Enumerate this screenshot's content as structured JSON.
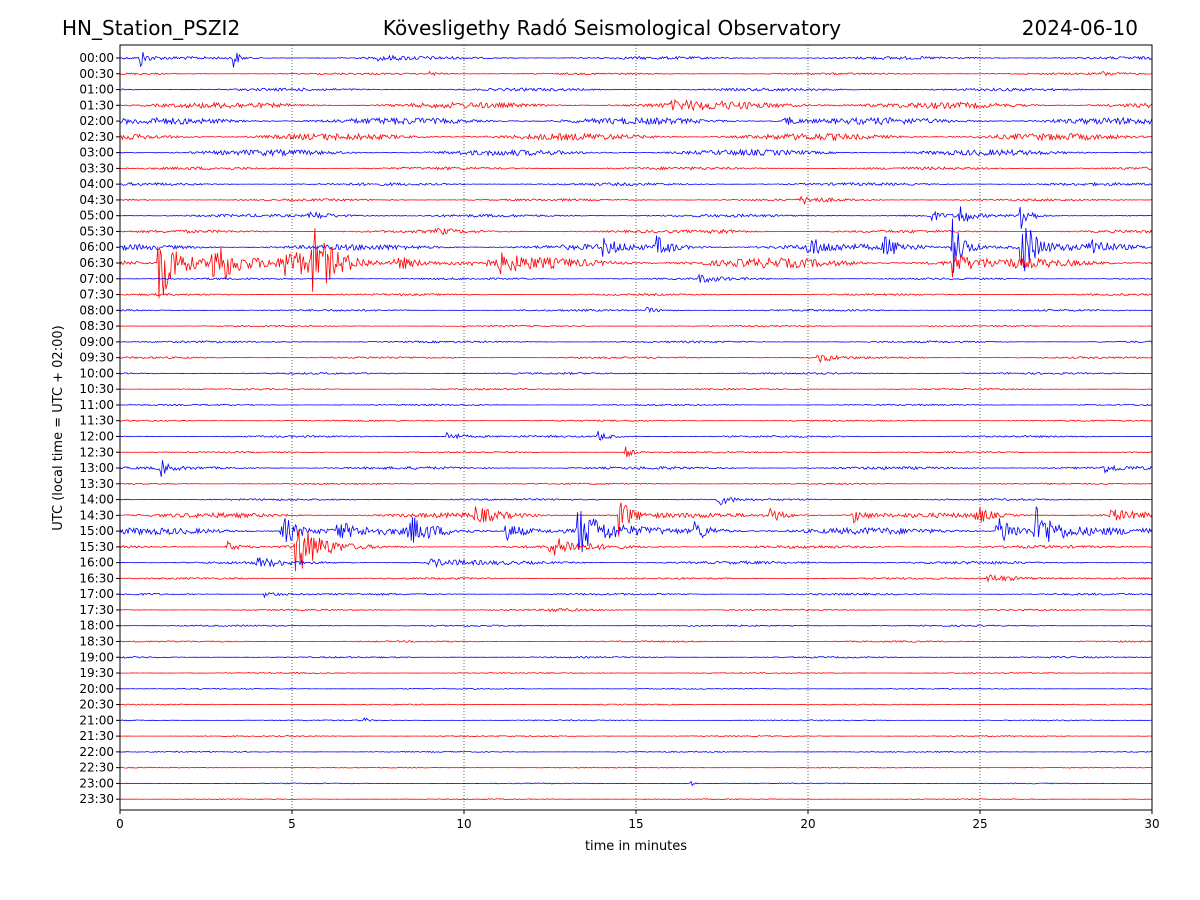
{
  "chart_data": {
    "type": "line",
    "title_left": "HN_Station_PSZI2",
    "title": "Kövesligethy Radó Seismological Observatory",
    "title_right": "2024-06-10",
    "xlabel": "time in minutes",
    "ylabel": "UTC (local time = UTC + 02:00)",
    "xlim": [
      0,
      30
    ],
    "xticks": [
      0,
      5,
      10,
      15,
      20,
      25,
      30
    ],
    "xtick_labels": [
      "0",
      "5",
      "10",
      "15",
      "20",
      "25",
      "30"
    ],
    "grid_x": true,
    "row_labels": [
      "00:00",
      "00:30",
      "01:00",
      "01:30",
      "02:00",
      "02:30",
      "03:00",
      "03:30",
      "04:00",
      "04:30",
      "05:00",
      "05:30",
      "06:00",
      "06:30",
      "07:00",
      "07:30",
      "08:00",
      "08:30",
      "09:00",
      "09:30",
      "10:00",
      "10:30",
      "11:00",
      "11:30",
      "12:00",
      "12:30",
      "13:00",
      "13:30",
      "14:00",
      "14:30",
      "15:00",
      "15:30",
      "16:00",
      "16:30",
      "17:00",
      "17:30",
      "18:00",
      "18:30",
      "19:00",
      "19:30",
      "20:00",
      "20:30",
      "21:00",
      "21:30",
      "22:00",
      "22:30",
      "23:00",
      "23:30"
    ],
    "row_colors": [
      "#0000ff",
      "#ff0000"
    ],
    "noise_level": [
      1.5,
      1,
      1.5,
      3,
      3.5,
      3.5,
      3,
      1.5,
      1.5,
      1.2,
      1.5,
      1.5,
      3,
      5,
      1,
      1,
      1,
      0.8,
      1,
      1,
      1,
      0.8,
      0.8,
      0.8,
      1,
      0.8,
      1.5,
      0.8,
      1,
      2.5,
      3.5,
      1.5,
      1.5,
      1,
      1,
      0.8,
      0.8,
      0.8,
      0.8,
      0.6,
      0.6,
      0.6,
      0.6,
      0.6,
      0.6,
      0.5,
      0.5,
      0.5
    ],
    "events": [
      {
        "row": 0,
        "t": 0.6,
        "amp": 10,
        "dur": 0.15
      },
      {
        "row": 0,
        "t": 3.3,
        "amp": 12,
        "dur": 0.12
      },
      {
        "row": 0,
        "t": 7.5,
        "amp": 2,
        "dur": 0.8
      },
      {
        "row": 1,
        "t": 9.0,
        "amp": 2,
        "dur": 0.4
      },
      {
        "row": 1,
        "t": 28.5,
        "amp": 2,
        "dur": 0.5
      },
      {
        "row": 3,
        "t": 16.0,
        "amp": 3,
        "dur": 2.5
      },
      {
        "row": 4,
        "t": 19.3,
        "amp": 6,
        "dur": 0.3
      },
      {
        "row": 9,
        "t": 19.8,
        "amp": 4,
        "dur": 0.6
      },
      {
        "row": 10,
        "t": 5.5,
        "amp": 4,
        "dur": 0.7
      },
      {
        "row": 10,
        "t": 23.6,
        "amp": 6,
        "dur": 0.2
      },
      {
        "row": 10,
        "t": 24.4,
        "amp": 14,
        "dur": 0.2
      },
      {
        "row": 10,
        "t": 26.1,
        "amp": 28,
        "dur": 0.2
      },
      {
        "row": 11,
        "t": 9.2,
        "amp": 3,
        "dur": 0.5
      },
      {
        "row": 11,
        "t": 17.2,
        "amp": 3,
        "dur": 0.6
      },
      {
        "row": 12,
        "t": 14.0,
        "amp": 8,
        "dur": 0.4
      },
      {
        "row": 12,
        "t": 15.6,
        "amp": 10,
        "dur": 0.4
      },
      {
        "row": 12,
        "t": 20.0,
        "amp": 10,
        "dur": 0.4
      },
      {
        "row": 12,
        "t": 22.2,
        "amp": 10,
        "dur": 0.5
      },
      {
        "row": 12,
        "t": 24.2,
        "amp": 30,
        "dur": 0.3
      },
      {
        "row": 12,
        "t": 26.2,
        "amp": 40,
        "dur": 0.3
      },
      {
        "row": 12,
        "t": 28.2,
        "amp": 12,
        "dur": 0.3
      },
      {
        "row": 13,
        "t": 1.1,
        "amp": 45,
        "dur": 0.5
      },
      {
        "row": 13,
        "t": 2.7,
        "amp": 35,
        "dur": 0.4
      },
      {
        "row": 13,
        "t": 4.8,
        "amp": 12,
        "dur": 0.8
      },
      {
        "row": 13,
        "t": 5.6,
        "amp": 30,
        "dur": 0.5
      },
      {
        "row": 13,
        "t": 8.0,
        "amp": 8,
        "dur": 0.6
      },
      {
        "row": 13,
        "t": 11.0,
        "amp": 8,
        "dur": 0.6
      },
      {
        "row": 13,
        "t": 24.2,
        "amp": 15,
        "dur": 0.3
      },
      {
        "row": 14,
        "t": 16.8,
        "amp": 4,
        "dur": 0.6
      },
      {
        "row": 16,
        "t": 15.3,
        "amp": 3,
        "dur": 0.4
      },
      {
        "row": 19,
        "t": 20.3,
        "amp": 5,
        "dur": 0.4
      },
      {
        "row": 24,
        "t": 9.5,
        "amp": 5,
        "dur": 0.4
      },
      {
        "row": 24,
        "t": 13.9,
        "amp": 5,
        "dur": 0.3
      },
      {
        "row": 25,
        "t": 14.7,
        "amp": 6,
        "dur": 0.2
      },
      {
        "row": 26,
        "t": 1.2,
        "amp": 8,
        "dur": 0.2
      },
      {
        "row": 26,
        "t": 28.6,
        "amp": 4,
        "dur": 0.4
      },
      {
        "row": 28,
        "t": 17.4,
        "amp": 6,
        "dur": 0.3
      },
      {
        "row": 29,
        "t": 10.3,
        "amp": 8,
        "dur": 0.6
      },
      {
        "row": 29,
        "t": 14.5,
        "amp": 22,
        "dur": 0.3
      },
      {
        "row": 29,
        "t": 18.9,
        "amp": 10,
        "dur": 0.3
      },
      {
        "row": 29,
        "t": 21.3,
        "amp": 8,
        "dur": 0.3
      },
      {
        "row": 29,
        "t": 24.9,
        "amp": 10,
        "dur": 0.3
      },
      {
        "row": 29,
        "t": 28.8,
        "amp": 6,
        "dur": 0.6
      },
      {
        "row": 30,
        "t": 4.7,
        "amp": 18,
        "dur": 0.4
      },
      {
        "row": 30,
        "t": 6.3,
        "amp": 10,
        "dur": 0.4
      },
      {
        "row": 30,
        "t": 8.4,
        "amp": 15,
        "dur": 0.5
      },
      {
        "row": 30,
        "t": 11.2,
        "amp": 10,
        "dur": 0.5
      },
      {
        "row": 30,
        "t": 13.3,
        "amp": 25,
        "dur": 0.6
      },
      {
        "row": 30,
        "t": 16.7,
        "amp": 10,
        "dur": 0.4
      },
      {
        "row": 30,
        "t": 25.5,
        "amp": 20,
        "dur": 0.4
      },
      {
        "row": 30,
        "t": 26.6,
        "amp": 25,
        "dur": 0.5
      },
      {
        "row": 31,
        "t": 5.1,
        "amp": 30,
        "dur": 0.6
      },
      {
        "row": 31,
        "t": 12.5,
        "amp": 10,
        "dur": 0.8
      },
      {
        "row": 31,
        "t": 3.1,
        "amp": 6,
        "dur": 0.3
      },
      {
        "row": 32,
        "t": 4.0,
        "amp": 5,
        "dur": 0.6
      },
      {
        "row": 32,
        "t": 9.0,
        "amp": 4,
        "dur": 1.0
      },
      {
        "row": 33,
        "t": 25.2,
        "amp": 4,
        "dur": 1.0
      },
      {
        "row": 34,
        "t": 4.2,
        "amp": 3,
        "dur": 0.5
      },
      {
        "row": 35,
        "t": 12.5,
        "amp": 2,
        "dur": 0.6
      },
      {
        "row": 42,
        "t": 7.1,
        "amp": 3,
        "dur": 0.1
      },
      {
        "row": 46,
        "t": 16.6,
        "amp": 3,
        "dur": 0.1
      }
    ]
  }
}
